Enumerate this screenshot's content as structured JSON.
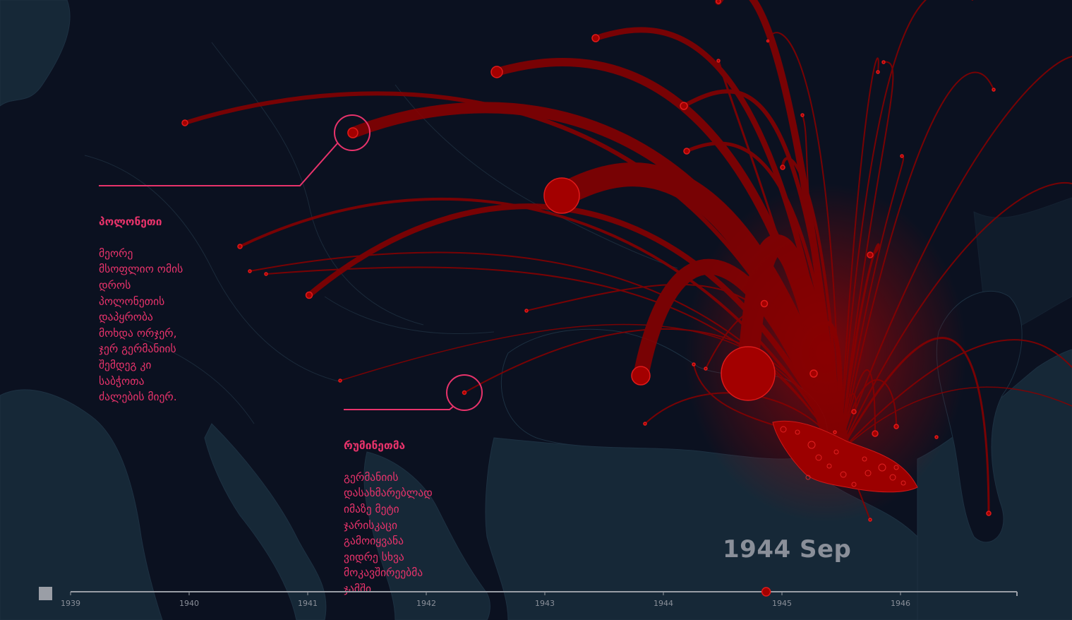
{
  "callouts": {
    "poland": {
      "title": "პოლონეთი",
      "text": "მეორე\nმსოფლიო ომის\nდროს\nპოლონეთის\nდაპყრობა\nმოხდა ორჯერ,\nჯერ გერმანიის\nშემდეგ კი\nსაბჭოთა\nძალების მიერ."
    },
    "romania": {
      "title": "რუმინეთმა",
      "text": "გერმანიის\nდასახმარებლად\nიმაზე მეტი\nჯარისკაცი\nგამოიყვანა\nვიდრე სხვა\nმოკავშირეებმა\nჯამში."
    }
  },
  "timeline": {
    "current_label": "1944 Sep",
    "years": [
      "1939",
      "1940",
      "1941",
      "1942",
      "1943",
      "1944",
      "1945",
      "1946"
    ],
    "progress": 0.735
  },
  "colors": {
    "background": "#0b1120",
    "land": "#162837",
    "flow": "#8b0000",
    "flow_highlight": "#d11a1a",
    "callout": "#e8336b"
  },
  "icons": {
    "play_button": "stop-square-icon"
  }
}
